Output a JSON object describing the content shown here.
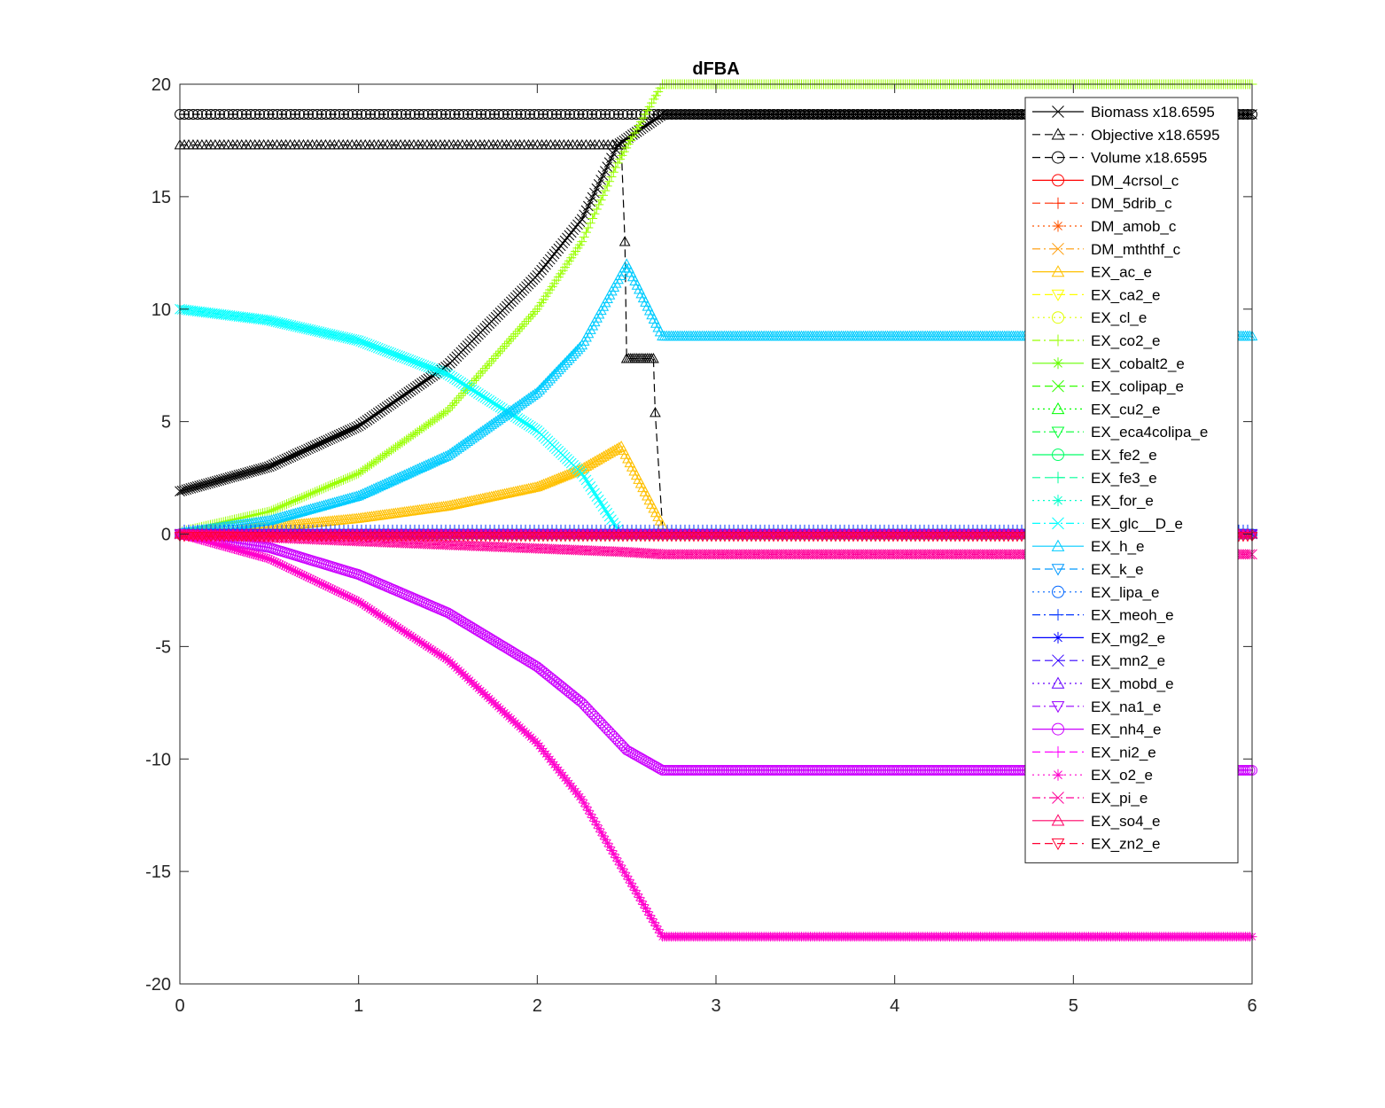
{
  "chart_data": {
    "type": "line",
    "title": "dFBA",
    "xlabel": "",
    "ylabel": "",
    "xlim": [
      0,
      6
    ],
    "ylim": [
      -20,
      20
    ],
    "xticks": [
      "0",
      "1",
      "2",
      "3",
      "4",
      "5",
      "6"
    ],
    "yticks": [
      "-20",
      "-15",
      "-10",
      "-5",
      "0",
      "5",
      "10",
      "15",
      "20"
    ],
    "grid": false,
    "legend_position": "top-right",
    "series": [
      {
        "name": "Biomass x18.6595",
        "color": "#000000",
        "marker": "x",
        "dash": "solid",
        "x": [
          0,
          0.5,
          1,
          1.5,
          2,
          2.25,
          2.45,
          2.7,
          6
        ],
        "y": [
          1.9,
          3.0,
          4.8,
          7.5,
          11.5,
          14.0,
          17.3,
          18.66,
          18.66
        ]
      },
      {
        "name": "Objective x18.6595",
        "color": "#000000",
        "marker": "triangle-up",
        "dash": "dash",
        "x": [
          0,
          2.47,
          2.49,
          2.5,
          2.65,
          2.66,
          2.7
        ],
        "y": [
          17.3,
          17.3,
          13.0,
          7.8,
          7.8,
          5.4,
          0.4
        ]
      },
      {
        "name": "Volume x18.6595",
        "color": "#000000",
        "marker": "circle",
        "dash": "dash",
        "x": [
          0,
          6
        ],
        "y": [
          18.66,
          18.66
        ]
      },
      {
        "name": "DM_4crsol_c",
        "color": "#ff0000",
        "marker": "circle",
        "dash": "solid",
        "x": [
          0,
          6
        ],
        "y": [
          0,
          0
        ]
      },
      {
        "name": "DM_5drib_c",
        "color": "#ff2a00",
        "marker": "plus",
        "dash": "dash",
        "x": [
          0,
          6
        ],
        "y": [
          0,
          0
        ]
      },
      {
        "name": "DM_amob_c",
        "color": "#ff5500",
        "marker": "asterisk",
        "dash": "dot",
        "x": [
          0,
          6
        ],
        "y": [
          0,
          0
        ]
      },
      {
        "name": "DM_mththf_c",
        "color": "#ff9900",
        "marker": "x",
        "dash": "dashdot",
        "x": [
          0,
          6
        ],
        "y": [
          0,
          0
        ]
      },
      {
        "name": "EX_ac_e",
        "color": "#ffc000",
        "marker": "triangle-up",
        "dash": "solid",
        "x": [
          0,
          0.5,
          1,
          1.5,
          2,
          2.25,
          2.47,
          2.7
        ],
        "y": [
          0.05,
          0.3,
          0.7,
          1.25,
          2.1,
          2.9,
          3.9,
          0.4
        ]
      },
      {
        "name": "EX_ca2_e",
        "color": "#ffff00",
        "marker": "triangle-down",
        "dash": "dash",
        "x": [
          0,
          6
        ],
        "y": [
          0,
          0
        ]
      },
      {
        "name": "EX_cl_e",
        "color": "#e1ff00",
        "marker": "circle",
        "dash": "dot",
        "x": [
          0,
          6
        ],
        "y": [
          0,
          0
        ]
      },
      {
        "name": "EX_co2_e",
        "color": "#99ff00",
        "marker": "plus",
        "dash": "dashdot",
        "x": [
          0,
          0.5,
          1,
          1.5,
          2,
          2.25,
          2.45,
          2.7,
          6
        ],
        "y": [
          0.1,
          1.0,
          2.7,
          5.5,
          10.0,
          13.0,
          16.5,
          20.0,
          20.0
        ]
      },
      {
        "name": "EX_cobalt2_e",
        "color": "#66ff00",
        "marker": "asterisk",
        "dash": "solid",
        "x": [
          0,
          6
        ],
        "y": [
          0,
          0
        ]
      },
      {
        "name": "EX_colipap_e",
        "color": "#33ff00",
        "marker": "x",
        "dash": "dash",
        "x": [
          0,
          6
        ],
        "y": [
          0,
          0
        ]
      },
      {
        "name": "EX_cu2_e",
        "color": "#00ff00",
        "marker": "triangle-up",
        "dash": "dot",
        "x": [
          0,
          6
        ],
        "y": [
          0,
          0
        ]
      },
      {
        "name": "EX_eca4colipa_e",
        "color": "#00ff33",
        "marker": "triangle-down",
        "dash": "dashdot",
        "x": [
          0,
          6
        ],
        "y": [
          0,
          0
        ]
      },
      {
        "name": "EX_fe2_e",
        "color": "#00ff66",
        "marker": "circle",
        "dash": "solid",
        "x": [
          0,
          6
        ],
        "y": [
          0,
          0
        ]
      },
      {
        "name": "EX_fe3_e",
        "color": "#00ff99",
        "marker": "plus",
        "dash": "dash",
        "x": [
          0,
          6
        ],
        "y": [
          0,
          0
        ]
      },
      {
        "name": "EX_for_e",
        "color": "#00ffcc",
        "marker": "asterisk",
        "dash": "dot",
        "x": [
          0,
          6
        ],
        "y": [
          0,
          0
        ]
      },
      {
        "name": "EX_glc__D_e",
        "color": "#00ffff",
        "marker": "x",
        "dash": "dashdot",
        "x": [
          0,
          0.5,
          1,
          1.5,
          2,
          2.25,
          2.45
        ],
        "y": [
          10.0,
          9.5,
          8.6,
          7.1,
          4.6,
          2.7,
          0.2
        ]
      },
      {
        "name": "EX_h_e",
        "color": "#00ccff",
        "marker": "triangle-up",
        "dash": "solid",
        "x": [
          0,
          0.5,
          1,
          1.5,
          2,
          2.25,
          2.5,
          2.7,
          6
        ],
        "y": [
          0.05,
          0.6,
          1.7,
          3.5,
          6.3,
          8.4,
          12.0,
          8.8,
          8.8
        ]
      },
      {
        "name": "EX_k_e",
        "color": "#0099ff",
        "marker": "triangle-down",
        "dash": "dash",
        "x": [
          0,
          6
        ],
        "y": [
          0,
          0
        ]
      },
      {
        "name": "EX_lipa_e",
        "color": "#0066ff",
        "marker": "circle",
        "dash": "dot",
        "x": [
          0,
          6
        ],
        "y": [
          0,
          0
        ]
      },
      {
        "name": "EX_meoh_e",
        "color": "#0033ff",
        "marker": "plus",
        "dash": "dashdot",
        "x": [
          0,
          6
        ],
        "y": [
          0.2,
          0.2
        ]
      },
      {
        "name": "EX_mg2_e",
        "color": "#0000ff",
        "marker": "asterisk",
        "dash": "solid",
        "x": [
          0,
          6
        ],
        "y": [
          0,
          0
        ]
      },
      {
        "name": "EX_mn2_e",
        "color": "#3300ff",
        "marker": "x",
        "dash": "dash",
        "x": [
          0,
          6
        ],
        "y": [
          0,
          0
        ]
      },
      {
        "name": "EX_mobd_e",
        "color": "#6600ff",
        "marker": "triangle-up",
        "dash": "dot",
        "x": [
          0,
          6
        ],
        "y": [
          0,
          0
        ]
      },
      {
        "name": "EX_na1_e",
        "color": "#9900ff",
        "marker": "triangle-down",
        "dash": "dashdot",
        "x": [
          0,
          6
        ],
        "y": [
          0,
          0
        ]
      },
      {
        "name": "EX_nh4_e",
        "color": "#cc00ff",
        "marker": "circle",
        "dash": "solid",
        "x": [
          0,
          0.5,
          1,
          1.5,
          2,
          2.25,
          2.5,
          2.7,
          6
        ],
        "y": [
          0,
          -0.6,
          -1.8,
          -3.5,
          -5.9,
          -7.5,
          -9.6,
          -10.5,
          -10.5
        ]
      },
      {
        "name": "EX_ni2_e",
        "color": "#ff00ff",
        "marker": "plus",
        "dash": "dash",
        "x": [
          0,
          6
        ],
        "y": [
          0,
          0
        ]
      },
      {
        "name": "EX_o2_e",
        "color": "#ff00cc",
        "marker": "asterisk",
        "dash": "dot",
        "x": [
          0,
          0.5,
          1,
          1.5,
          2,
          2.25,
          2.5,
          2.7,
          6
        ],
        "y": [
          0,
          -1.1,
          -3.0,
          -5.6,
          -9.3,
          -11.8,
          -15.2,
          -17.9,
          -17.9
        ]
      },
      {
        "name": "EX_pi_e",
        "color": "#ff0099",
        "marker": "x",
        "dash": "dashdot",
        "x": [
          0,
          2.5,
          2.7,
          6
        ],
        "y": [
          0,
          -0.8,
          -0.9,
          -0.9
        ]
      },
      {
        "name": "EX_so4_e",
        "color": "#ff0066",
        "marker": "triangle-up",
        "dash": "solid",
        "x": [
          0,
          6
        ],
        "y": [
          0,
          0
        ]
      },
      {
        "name": "EX_zn2_e",
        "color": "#ff0033",
        "marker": "triangle-down",
        "dash": "dash",
        "x": [
          0,
          6
        ],
        "y": [
          -0.1,
          -0.1
        ]
      }
    ]
  }
}
